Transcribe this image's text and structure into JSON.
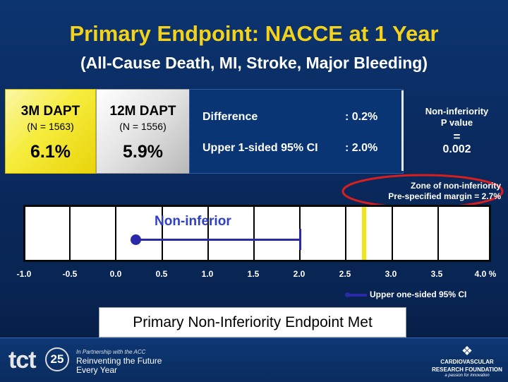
{
  "title": "Primary Endpoint: NACCE at 1 Year",
  "subtitle": "(All-Cause Death, MI, Stroke, Major Bleeding)",
  "arm1": {
    "label": "3M DAPT",
    "n": "(N = 1563)",
    "value": "6.1%"
  },
  "arm2": {
    "label": "12M DAPT",
    "n": "(N = 1556)",
    "value": "5.9%"
  },
  "stats": {
    "diff_label": "Difference",
    "diff_value": ": 0.2%",
    "ci_label": "Upper 1-sided 95% CI",
    "ci_value": ": 2.0%"
  },
  "noninferiority": {
    "line1": "Non-inferiority",
    "line2": "P value",
    "eq": "=",
    "p": "0.002"
  },
  "zone": {
    "line1": "Zone of non-inferiority",
    "line2": "Pre-specified margin = 2.7%"
  },
  "scale": {
    "non_inferior_label": "Non-inferior",
    "ticks": [
      "-1.0",
      "-0.5",
      "0.0",
      "0.5",
      "1.0",
      "1.5",
      "2.0",
      "2.5",
      "3.0",
      "3.5",
      "4.0 %"
    ],
    "legend": "Upper one-sided 95% CI",
    "margin_color": "#f3e515",
    "ci_color": "#2a2aa8"
  },
  "conclusion": "Primary Non-Inferiority Endpoint Met",
  "footer": {
    "tct_text": "tct",
    "badge_text": "25",
    "partner_text": "In Partnership with the ACC",
    "tagline1": "Reinventing the Future",
    "tagline2": "Every Year",
    "crf_line1": "CARDIOVASCULAR",
    "crf_line2": "RESEARCH FOUNDATION",
    "crf_line3": "a passion for innovation"
  },
  "colors": {
    "title": "#f4d21a",
    "highlight_circle": "#d81e1e"
  }
}
